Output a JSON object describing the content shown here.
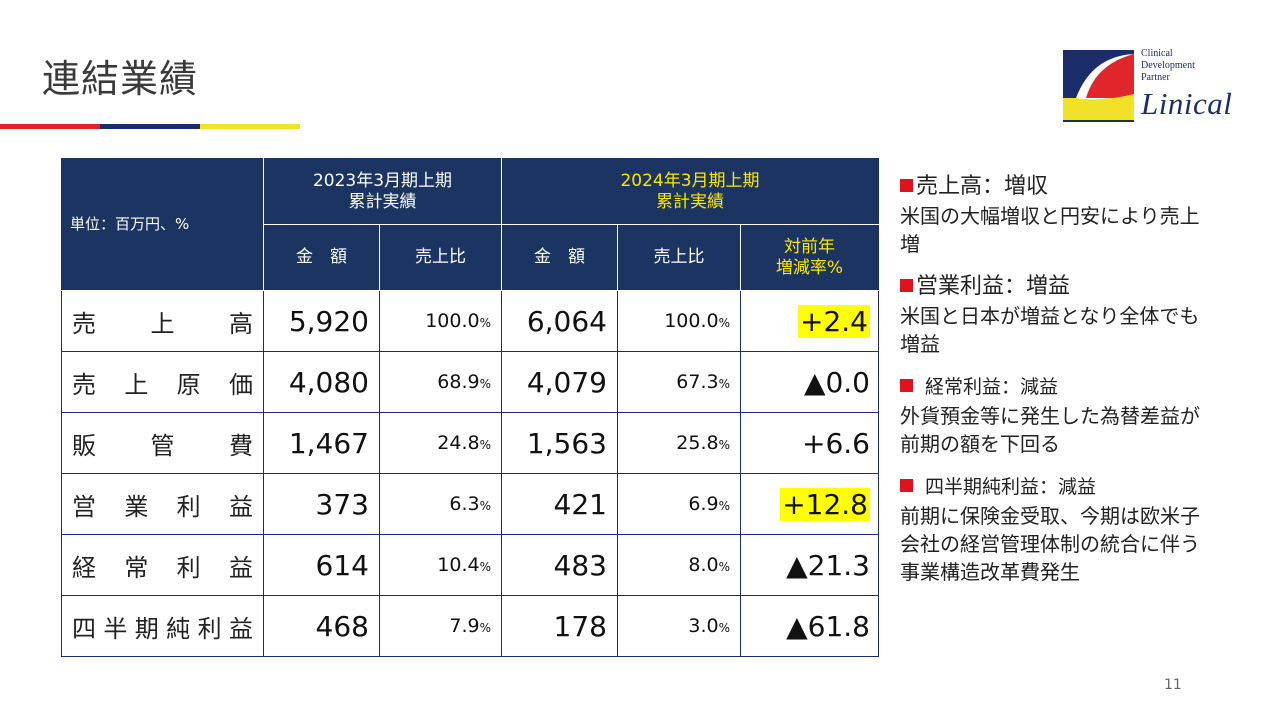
{
  "title": "連結業績",
  "logo": {
    "line1": "Clinical",
    "line2": "Development",
    "line3": "Partner",
    "word": "Linical",
    "colors": {
      "red": "#e0262b",
      "navy": "#1b2e6b",
      "yellow": "#f2e227"
    }
  },
  "table": {
    "unit_label": "単位：百万円、%",
    "period_prev": {
      "line1": "2023年3月期上期",
      "line2": "累計実績"
    },
    "period_curr": {
      "line1": "2024年3月期上期",
      "line2": "累計実績"
    },
    "col_amount": "金　額",
    "col_ratio": "売上比",
    "col_change_line1": "対前年",
    "col_change_line2": "増減率%",
    "pct_unit": "%",
    "rows": [
      {
        "label": "売上高",
        "prev_amount": "5,920",
        "prev_ratio": "100.0",
        "curr_amount": "6,064",
        "curr_ratio": "100.0",
        "change": "+2.4",
        "highlight": true
      },
      {
        "label": "売上原価",
        "prev_amount": "4,080",
        "prev_ratio": "68.9",
        "curr_amount": "4,079",
        "curr_ratio": "67.3",
        "change": "▲0.0",
        "highlight": false
      },
      {
        "label": "販管費",
        "prev_amount": "1,467",
        "prev_ratio": "24.8",
        "curr_amount": "1,563",
        "curr_ratio": "25.8",
        "change": "+6.6",
        "highlight": false
      },
      {
        "label": "営業利益",
        "prev_amount": "373",
        "prev_ratio": "6.3",
        "curr_amount": "421",
        "curr_ratio": "6.9",
        "change": "+12.8",
        "highlight": true
      },
      {
        "label": "経常利益",
        "prev_amount": "614",
        "prev_ratio": "10.4",
        "curr_amount": "483",
        "curr_ratio": "8.0",
        "change": "▲21.3",
        "highlight": false
      },
      {
        "label": "四半期純利益",
        "prev_amount": "468",
        "prev_ratio": "7.9",
        "curr_amount": "178",
        "curr_ratio": "3.0",
        "change": "▲61.8",
        "highlight": false
      }
    ]
  },
  "notes": [
    {
      "head": "売上高：増収",
      "body": "米国の大幅増収と円安により売上増"
    },
    {
      "head": "営業利益：増益",
      "body": "米国と日本が増益となり全体でも増益"
    },
    {
      "head": "経常利益：減益",
      "body": "外貨預金等に発生した為替差益が前期の額を下回る"
    },
    {
      "head": "四半期純利益：減益",
      "body": "前期に保険金受取、今期は欧米子会社の経営管理体制の統合に伴う事業構造改革費発生"
    }
  ],
  "page_number": "11"
}
